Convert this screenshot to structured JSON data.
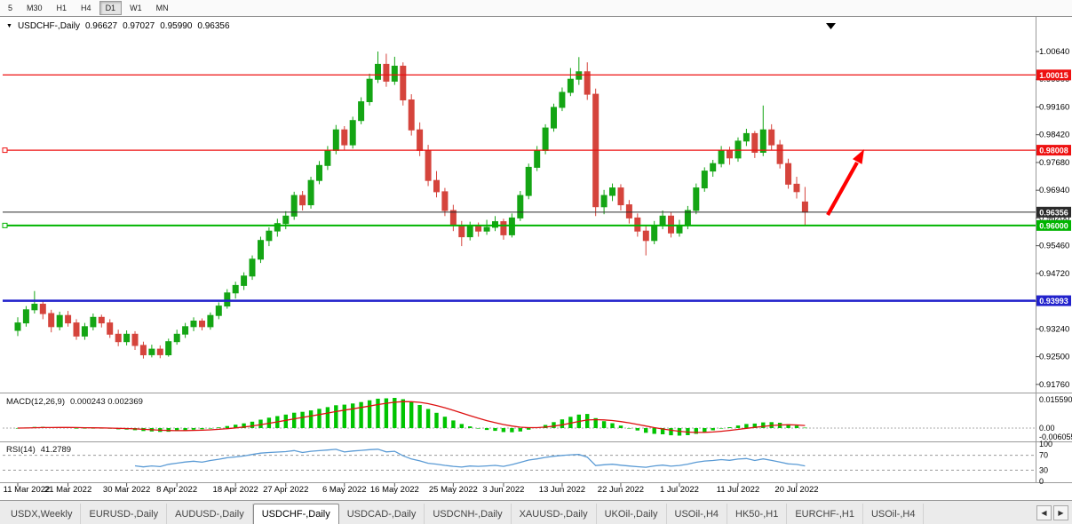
{
  "toolbar": {
    "timeframes": [
      {
        "label": "5",
        "active": false
      },
      {
        "label": "M30",
        "active": false
      },
      {
        "label": "H1",
        "active": false
      },
      {
        "label": "H4",
        "active": false
      },
      {
        "label": "D1",
        "active": true
      },
      {
        "label": "W1",
        "active": false
      },
      {
        "label": "MN",
        "active": false
      }
    ]
  },
  "chart_header": {
    "dropdown_icon": "▼",
    "symbol": "USDCHF-,Daily",
    "open": "0.96627",
    "high": "0.97027",
    "low": "0.95990",
    "close": "0.96356"
  },
  "chart_data": {
    "type": "candlestick",
    "symbol": "USDCHF-",
    "timeframe": "Daily",
    "colors": {
      "bull": "#14a514",
      "bear": "#d5443c",
      "macd_hist": "#00c400",
      "macd_signal": "#dd1111",
      "rsi_line": "#5b9bd5",
      "arrow": "#ff0000"
    },
    "price_axis": {
      "min": 0.9152,
      "max": 1.0149,
      "ticks": [
        1.0064,
        0.999,
        0.9916,
        0.9842,
        0.9768,
        0.9694,
        0.962,
        0.9546,
        0.9472,
        0.9398,
        0.9324,
        0.925,
        0.9176
      ]
    },
    "hlines": [
      {
        "name": "resistance-line-upper",
        "price": 1.00015,
        "label": "1.00015",
        "color": "#ee1111",
        "width": 1.3,
        "handle": false
      },
      {
        "name": "resistance-line-lower",
        "price": 0.98008,
        "label": "0.98008",
        "color": "#ee1111",
        "width": 1.3,
        "handle": true
      },
      {
        "name": "current-price-line",
        "price": 0.96356,
        "label": "0.96356",
        "color": "#2b2b2b",
        "width": 1,
        "handle": false
      },
      {
        "name": "support-line-green",
        "price": 0.96,
        "label": "0.96000",
        "color": "#00b400",
        "width": 2,
        "handle": true
      },
      {
        "name": "support-line-blue",
        "price": 0.93993,
        "label": "0.93993",
        "color": "#2222cc",
        "width": 2.5,
        "handle": false
      }
    ],
    "candles": [
      [
        0.932,
        0.9355,
        0.9305,
        0.934
      ],
      [
        0.934,
        0.9385,
        0.933,
        0.9375
      ],
      [
        0.9375,
        0.9425,
        0.9365,
        0.939
      ],
      [
        0.939,
        0.94,
        0.935,
        0.9365
      ],
      [
        0.9365,
        0.9375,
        0.9315,
        0.933
      ],
      [
        0.933,
        0.937,
        0.932,
        0.936
      ],
      [
        0.936,
        0.9372,
        0.933,
        0.934
      ],
      [
        0.934,
        0.935,
        0.9295,
        0.9305
      ],
      [
        0.9305,
        0.934,
        0.9295,
        0.933
      ],
      [
        0.933,
        0.9365,
        0.932,
        0.9355
      ],
      [
        0.9355,
        0.9362,
        0.9328,
        0.934
      ],
      [
        0.934,
        0.935,
        0.93,
        0.931
      ],
      [
        0.931,
        0.9322,
        0.9278,
        0.929
      ],
      [
        0.929,
        0.932,
        0.928,
        0.931
      ],
      [
        0.931,
        0.9318,
        0.9268,
        0.928
      ],
      [
        0.928,
        0.929,
        0.9245,
        0.9255
      ],
      [
        0.9255,
        0.9282,
        0.9248,
        0.927
      ],
      [
        0.927,
        0.928,
        0.9246,
        0.9255
      ],
      [
        0.9255,
        0.9298,
        0.925,
        0.929
      ],
      [
        0.929,
        0.9322,
        0.9282,
        0.931
      ],
      [
        0.931,
        0.934,
        0.93,
        0.933
      ],
      [
        0.933,
        0.9355,
        0.9318,
        0.9345
      ],
      [
        0.9345,
        0.9352,
        0.932,
        0.933
      ],
      [
        0.933,
        0.9368,
        0.9322,
        0.936
      ],
      [
        0.936,
        0.9395,
        0.935,
        0.9385
      ],
      [
        0.9385,
        0.943,
        0.9378,
        0.942
      ],
      [
        0.942,
        0.945,
        0.9405,
        0.944
      ],
      [
        0.944,
        0.9475,
        0.9428,
        0.9465
      ],
      [
        0.9465,
        0.952,
        0.9455,
        0.951
      ],
      [
        0.951,
        0.957,
        0.95,
        0.956
      ],
      [
        0.956,
        0.9595,
        0.9545,
        0.9585
      ],
      [
        0.9585,
        0.9618,
        0.957,
        0.9605
      ],
      [
        0.9605,
        0.9638,
        0.959,
        0.9625
      ],
      [
        0.9625,
        0.969,
        0.9615,
        0.968
      ],
      [
        0.968,
        0.9692,
        0.964,
        0.9655
      ],
      [
        0.9655,
        0.973,
        0.9645,
        0.972
      ],
      [
        0.972,
        0.9772,
        0.971,
        0.976
      ],
      [
        0.976,
        0.9812,
        0.9748,
        0.98
      ],
      [
        0.98,
        0.9868,
        0.979,
        0.9855
      ],
      [
        0.9855,
        0.9865,
        0.98,
        0.9815
      ],
      [
        0.9815,
        0.989,
        0.9805,
        0.988
      ],
      [
        0.988,
        0.9942,
        0.987,
        0.993
      ],
      [
        0.993,
        1.0005,
        0.992,
        0.999
      ],
      [
        0.999,
        1.0064,
        0.998,
        1.003
      ],
      [
        1.003,
        1.0058,
        0.997,
        0.9985
      ],
      [
        0.9985,
        1.005,
        0.9975,
        1.0025
      ],
      [
        1.0025,
        1.0035,
        0.992,
        0.9935
      ],
      [
        0.9935,
        0.995,
        0.984,
        0.9855
      ],
      [
        0.9855,
        0.9875,
        0.9785,
        0.98
      ],
      [
        0.98,
        0.9815,
        0.9705,
        0.972
      ],
      [
        0.972,
        0.9745,
        0.9675,
        0.969
      ],
      [
        0.969,
        0.97,
        0.9625,
        0.964
      ],
      [
        0.964,
        0.9655,
        0.9585,
        0.96
      ],
      [
        0.96,
        0.9612,
        0.9545,
        0.957
      ],
      [
        0.957,
        0.961,
        0.956,
        0.96
      ],
      [
        0.96,
        0.9608,
        0.957,
        0.9585
      ],
      [
        0.9585,
        0.9615,
        0.9575,
        0.9595
      ],
      [
        0.9595,
        0.9625,
        0.9585,
        0.961
      ],
      [
        0.961,
        0.9618,
        0.9562,
        0.9575
      ],
      [
        0.9575,
        0.9632,
        0.9568,
        0.962
      ],
      [
        0.962,
        0.9692,
        0.9612,
        0.968
      ],
      [
        0.968,
        0.9765,
        0.967,
        0.9755
      ],
      [
        0.9755,
        0.9812,
        0.9745,
        0.98
      ],
      [
        0.98,
        0.987,
        0.979,
        0.986
      ],
      [
        0.986,
        0.9925,
        0.985,
        0.9915
      ],
      [
        0.9915,
        0.9968,
        0.9905,
        0.9955
      ],
      [
        0.9955,
        1.002,
        0.9945,
        0.999
      ],
      [
        0.999,
        1.0049,
        0.9975,
        1.001
      ],
      [
        1.001,
        1.0035,
        0.9935,
        0.995
      ],
      [
        0.995,
        0.9965,
        0.9625,
        0.965
      ],
      [
        0.965,
        0.9695,
        0.963,
        0.968
      ],
      [
        0.968,
        0.9712,
        0.9665,
        0.97
      ],
      [
        0.97,
        0.971,
        0.964,
        0.9655
      ],
      [
        0.9655,
        0.9668,
        0.9605,
        0.962
      ],
      [
        0.962,
        0.9632,
        0.957,
        0.9585
      ],
      [
        0.9585,
        0.9598,
        0.952,
        0.956
      ],
      [
        0.956,
        0.9612,
        0.955,
        0.96
      ],
      [
        0.96,
        0.964,
        0.959,
        0.9625
      ],
      [
        0.9625,
        0.9635,
        0.9568,
        0.958
      ],
      [
        0.958,
        0.9615,
        0.957,
        0.96
      ],
      [
        0.96,
        0.9652,
        0.959,
        0.964
      ],
      [
        0.964,
        0.9712,
        0.963,
        0.97
      ],
      [
        0.97,
        0.9755,
        0.969,
        0.9745
      ],
      [
        0.9745,
        0.9775,
        0.973,
        0.9765
      ],
      [
        0.9765,
        0.9812,
        0.9755,
        0.98
      ],
      [
        0.98,
        0.981,
        0.9762,
        0.978
      ],
      [
        0.978,
        0.9835,
        0.977,
        0.9825
      ],
      [
        0.9825,
        0.9858,
        0.9812,
        0.9845
      ],
      [
        0.9845,
        0.9852,
        0.978,
        0.9795
      ],
      [
        0.9795,
        0.992,
        0.9785,
        0.9855
      ],
      [
        0.9855,
        0.987,
        0.98,
        0.9815
      ],
      [
        0.9815,
        0.9828,
        0.9752,
        0.9765
      ],
      [
        0.9765,
        0.9778,
        0.9698,
        0.971
      ],
      [
        0.971,
        0.973,
        0.9672,
        0.969
      ],
      [
        0.96627,
        0.97027,
        0.9599,
        0.96356
      ]
    ],
    "date_ticks": [
      {
        "i": 0,
        "label": "11 Mar 2022"
      },
      {
        "i": 6,
        "label": "21 Mar 2022"
      },
      {
        "i": 13,
        "label": "30 Mar 2022"
      },
      {
        "i": 19,
        "label": "8 Apr 2022"
      },
      {
        "i": 26,
        "label": "18 Apr 2022"
      },
      {
        "i": 32,
        "label": "27 Apr 2022"
      },
      {
        "i": 39,
        "label": "6 May 2022"
      },
      {
        "i": 45,
        "label": "16 May 2022"
      },
      {
        "i": 52,
        "label": "25 May 2022"
      },
      {
        "i": 58,
        "label": "3 Jun 2022"
      },
      {
        "i": 65,
        "label": "13 Jun 2022"
      },
      {
        "i": 72,
        "label": "22 Jun 2022"
      },
      {
        "i": 79,
        "label": "1 Jul 2022"
      },
      {
        "i": 86,
        "label": "11 Jul 2022"
      },
      {
        "i": 93,
        "label": "20 Jul 2022"
      }
    ],
    "indicators": {
      "macd": {
        "label": "MACD(12,26,9)",
        "values_text": "0.000243 0.002369",
        "fast": 12,
        "slow": 26,
        "signal": 9,
        "axis": [
          "0.015590",
          "0.00",
          "-0.006055"
        ]
      },
      "rsi": {
        "label": "RSI(14)",
        "value_text": "41.2789",
        "period": 14,
        "levels": [
          70,
          30
        ],
        "axis": [
          "100",
          "70",
          "30",
          "0"
        ]
      }
    },
    "annotations": [
      {
        "type": "arrow",
        "color": "#ff0000",
        "direction": "up-right"
      }
    ]
  },
  "tabs": {
    "items": [
      "USDX,Weekly",
      "EURUSD-,Daily",
      "AUDUSD-,Daily",
      "USDCHF-,Daily",
      "USDCAD-,Daily",
      "USDCNH-,Daily",
      "XAUUSD-,Daily",
      "UKOil-,Daily",
      "USOil-,H4",
      "HK50-,H1",
      "EURCHF-,H1",
      "USOil-,H4"
    ],
    "active_index": 3,
    "nav_left_icon": "◀",
    "nav_right_icon": "▶"
  }
}
